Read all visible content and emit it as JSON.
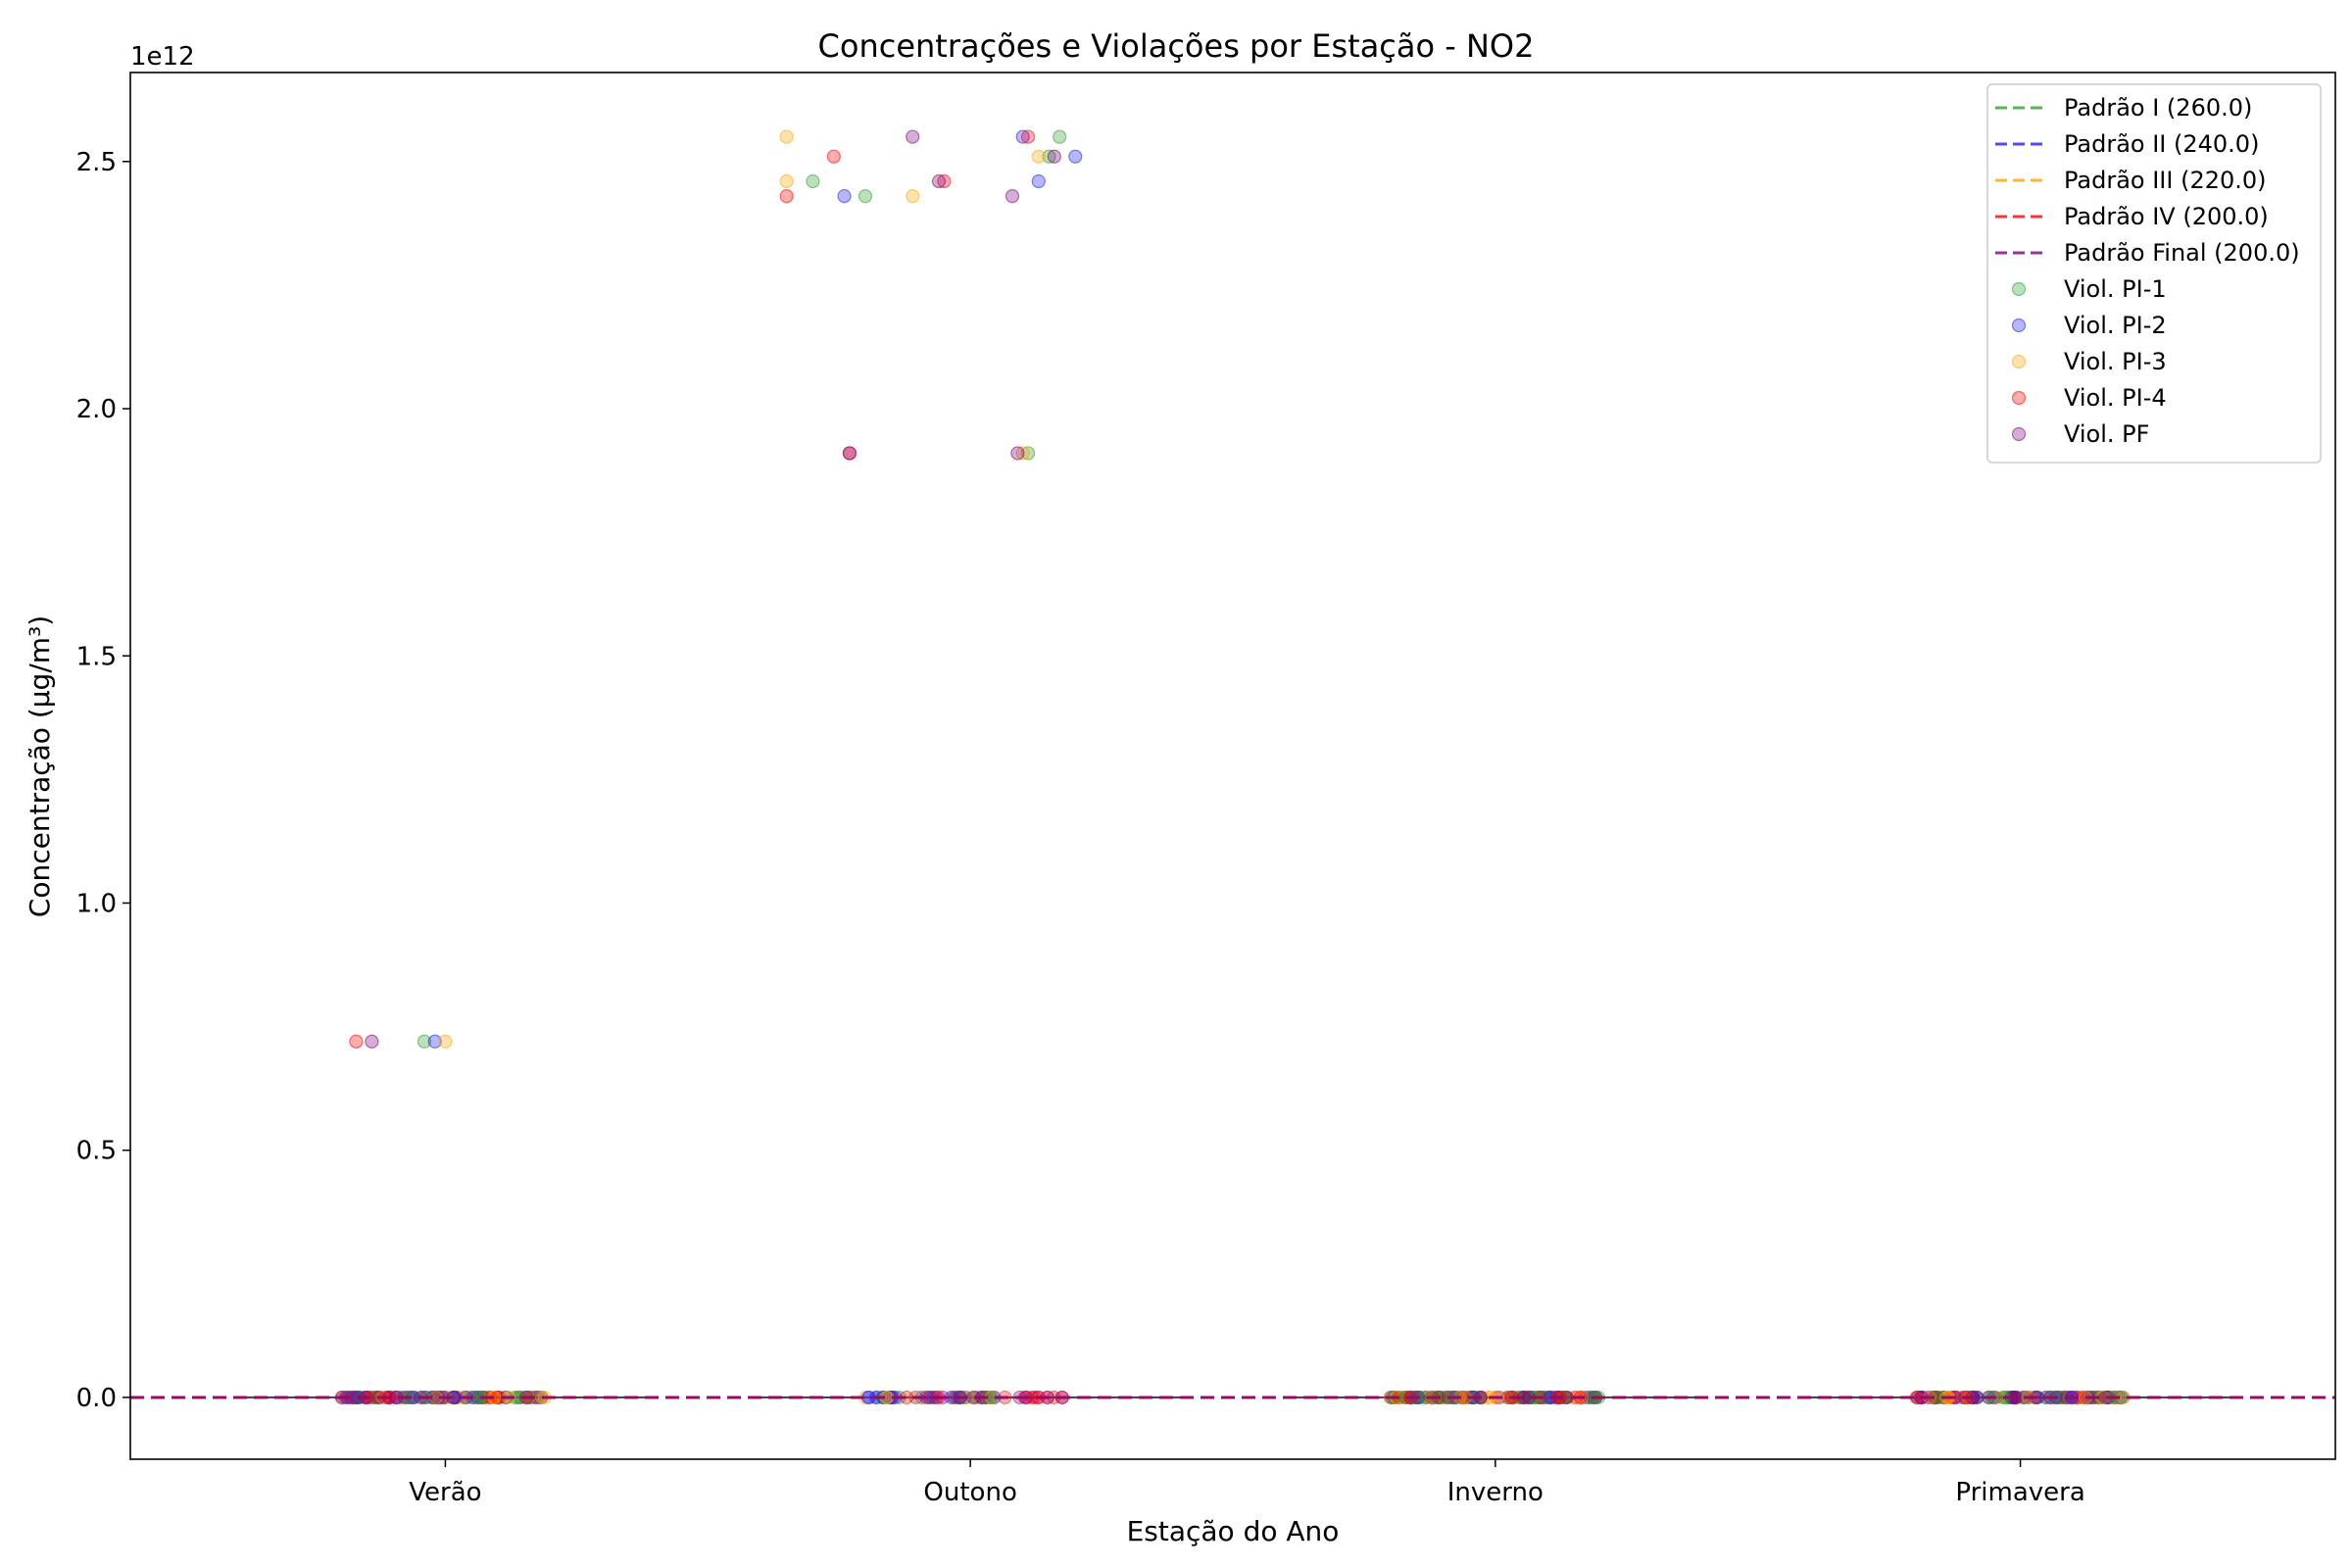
{
  "chart_data": {
    "type": "scatter",
    "title": "Concentrações e Violações por Estação - NO2",
    "xlabel": "Estação do Ano",
    "ylabel": "Concentração (μg/m³)",
    "y_offset_label": "1e12",
    "categories": [
      "Verão",
      "Outono",
      "Inverno",
      "Primavera"
    ],
    "ylim": [
      -0.125,
      2.68
    ],
    "y_scale": 1000000000000.0,
    "y_ticks": [
      0.0,
      0.5,
      1.0,
      1.5,
      2.0,
      2.5
    ],
    "y_tick_labels": [
      "0.0",
      "0.5",
      "1.0",
      "1.5",
      "2.0",
      "2.5"
    ],
    "grid": false,
    "legend_position": "top-right",
    "reference_lines": [
      {
        "name": "Padrão I (260.0)",
        "value": 260.0,
        "color": "#2ca02c"
      },
      {
        "name": "Padrão II (240.0)",
        "value": 240.0,
        "color": "#1f1fff"
      },
      {
        "name": "Padrão III (220.0)",
        "value": 220.0,
        "color": "#ffa500"
      },
      {
        "name": "Padrão IV (200.0)",
        "value": 200.0,
        "color": "#ff0000"
      },
      {
        "name": "Padrão Final (200.0)",
        "value": 200.0,
        "color": "#800080"
      }
    ],
    "series": [
      {
        "name": "Viol. PI-1",
        "color": "#2ca02c",
        "points": [
          {
            "x": -0.04,
            "y": 0.72
          },
          {
            "x": 0.7,
            "y": 2.46
          },
          {
            "x": 0.8,
            "y": 2.43
          },
          {
            "x": 1.17,
            "y": 2.55
          },
          {
            "x": 1.11,
            "y": 1.91
          },
          {
            "x": 1.15,
            "y": 2.51
          }
        ]
      },
      {
        "name": "Viol. PI-2",
        "color": "#1f1fff",
        "points": [
          {
            "x": -0.02,
            "y": 0.72
          },
          {
            "x": 0.76,
            "y": 2.43
          },
          {
            "x": 1.1,
            "y": 2.55
          },
          {
            "x": 1.13,
            "y": 2.46
          },
          {
            "x": 1.2,
            "y": 2.51
          }
        ]
      },
      {
        "name": "Viol. PI-3",
        "color": "#ffa500",
        "points": [
          {
            "x": 0.0,
            "y": 0.72
          },
          {
            "x": 0.65,
            "y": 2.55
          },
          {
            "x": 0.65,
            "y": 2.46
          },
          {
            "x": 0.89,
            "y": 2.43
          },
          {
            "x": 1.13,
            "y": 2.51
          },
          {
            "x": 1.1,
            "y": 1.91
          }
        ]
      },
      {
        "name": "Viol. PI-4",
        "color": "#ff0000",
        "points": [
          {
            "x": -0.17,
            "y": 0.72
          },
          {
            "x": 0.65,
            "y": 2.43
          },
          {
            "x": 0.74,
            "y": 2.51
          },
          {
            "x": 0.95,
            "y": 2.46
          },
          {
            "x": 1.11,
            "y": 2.55
          },
          {
            "x": 0.77,
            "y": 1.91
          }
        ]
      },
      {
        "name": "Viol. PF",
        "color": "#800080",
        "points": [
          {
            "x": -0.14,
            "y": 0.72
          },
          {
            "x": 0.89,
            "y": 2.55
          },
          {
            "x": 0.94,
            "y": 2.46
          },
          {
            "x": 1.08,
            "y": 2.43
          },
          {
            "x": 1.16,
            "y": 2.51
          },
          {
            "x": 0.77,
            "y": 1.91
          },
          {
            "x": 1.09,
            "y": 1.91
          }
        ]
      }
    ],
    "baseline_clusters": [
      {
        "category": "Verão",
        "x_min": -0.2,
        "x_max": 0.2
      },
      {
        "category": "Outono",
        "x_min": -0.2,
        "x_max": 0.19
      },
      {
        "category": "Inverno",
        "x_min": -0.2,
        "x_max": 0.2
      },
      {
        "category": "Primavera",
        "x_min": -0.2,
        "x_max": 0.2
      }
    ]
  }
}
